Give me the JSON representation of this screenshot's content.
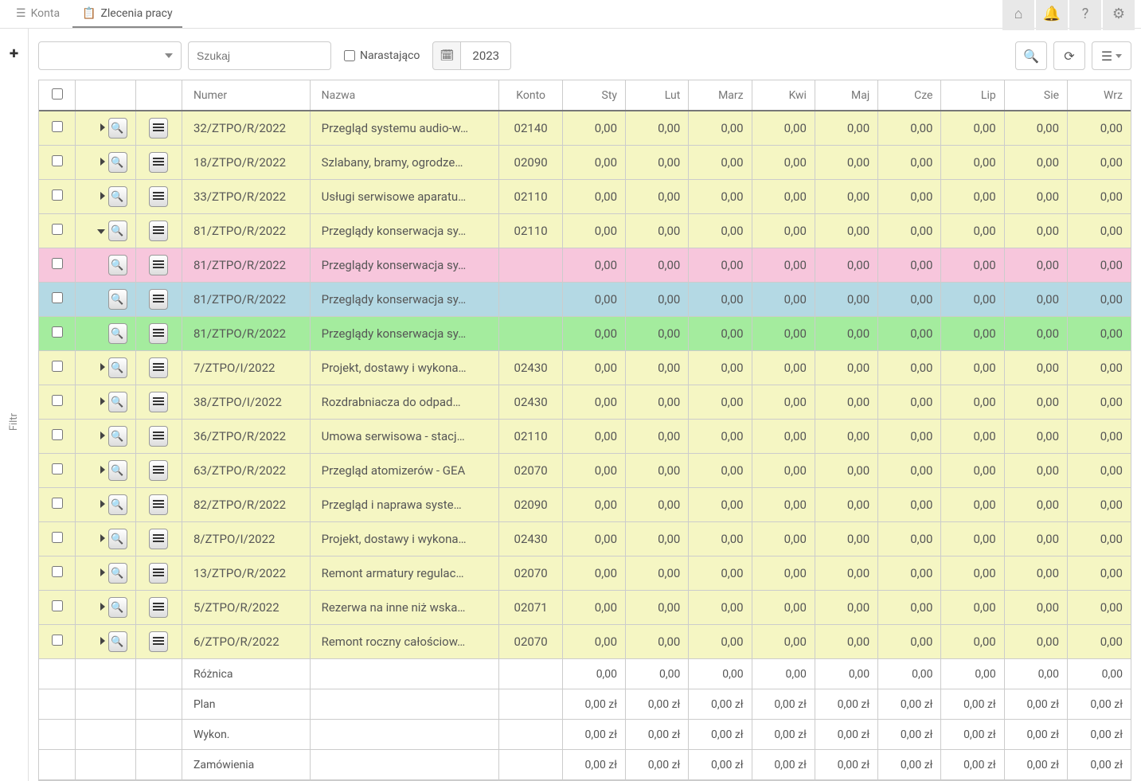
{
  "nav": {
    "tab1": "Konta",
    "tab2": "Zlecenia pracy"
  },
  "toolbar": {
    "searchPlaceholder": "Szukaj",
    "ascending": "Narastająco",
    "year": "2023"
  },
  "sidebar": {
    "filtr": "Filtr"
  },
  "headers": {
    "numer": "Numer",
    "nazwa": "Nazwa",
    "konto": "Konto",
    "sty": "Sty",
    "lut": "Lut",
    "marz": "Marz",
    "kwi": "Kwi",
    "maj": "Maj",
    "cze": "Cze",
    "lip": "Lip",
    "sie": "Sie",
    "wrz": "Wrz"
  },
  "rows": [
    {
      "rc": "row-yellow row-first",
      "ex": "r",
      "numer": "32/ZTPO/R/2022",
      "nazwa": "Przegląd systemu audio-w…",
      "konto": "02140",
      "vals": [
        "0,00",
        "0,00",
        "0,00",
        "0,00",
        "0,00",
        "0,00",
        "0,00",
        "0,00",
        "0,00"
      ]
    },
    {
      "rc": "row-yellow",
      "ex": "r",
      "numer": "18/ZTPO/R/2022",
      "nazwa": "Szlabany, bramy, ogrodze…",
      "konto": "02090",
      "vals": [
        "0,00",
        "0,00",
        "0,00",
        "0,00",
        "0,00",
        "0,00",
        "0,00",
        "0,00",
        "0,00"
      ]
    },
    {
      "rc": "row-yellow",
      "ex": "r",
      "numer": "33/ZTPO/R/2022",
      "nazwa": "Usługi serwisowe aparatu…",
      "konto": "02110",
      "vals": [
        "0,00",
        "0,00",
        "0,00",
        "0,00",
        "0,00",
        "0,00",
        "0,00",
        "0,00",
        "0,00"
      ]
    },
    {
      "rc": "row-yellow",
      "ex": "d",
      "numer": "81/ZTPO/R/2022",
      "nazwa": "Przeglądy konserwacja sy…",
      "konto": "02110",
      "vals": [
        "0,00",
        "0,00",
        "0,00",
        "0,00",
        "0,00",
        "0,00",
        "0,00",
        "0,00",
        "0,00"
      ]
    },
    {
      "rc": "row-pink",
      "ex": "",
      "numer": "81/ZTPO/R/2022",
      "nazwa": "Przeglądy konserwacja sy…",
      "konto": "",
      "vals": [
        "0,00",
        "0,00",
        "0,00",
        "0,00",
        "0,00",
        "0,00",
        "0,00",
        "0,00",
        "0,00"
      ]
    },
    {
      "rc": "row-blue",
      "ex": "",
      "numer": "81/ZTPO/R/2022",
      "nazwa": "Przeglądy konserwacja sy…",
      "konto": "",
      "vals": [
        "0,00",
        "0,00",
        "0,00",
        "0,00",
        "0,00",
        "0,00",
        "0,00",
        "0,00",
        "0,00"
      ]
    },
    {
      "rc": "row-green",
      "ex": "",
      "numer": "81/ZTPO/R/2022",
      "nazwa": "Przeglądy konserwacja sy…",
      "konto": "",
      "vals": [
        "0,00",
        "0,00",
        "0,00",
        "0,00",
        "0,00",
        "0,00",
        "0,00",
        "0,00",
        "0,00"
      ]
    },
    {
      "rc": "row-yellow",
      "ex": "r",
      "numer": "7/ZTPO/I/2022",
      "nazwa": "Projekt, dostawy i wykona…",
      "konto": "02430",
      "vals": [
        "0,00",
        "0,00",
        "0,00",
        "0,00",
        "0,00",
        "0,00",
        "0,00",
        "0,00",
        "0,00"
      ]
    },
    {
      "rc": "row-yellow",
      "ex": "r",
      "numer": "38/ZTPO/I/2022",
      "nazwa": "Rozdrabniacza do odpad…",
      "konto": "02430",
      "vals": [
        "0,00",
        "0,00",
        "0,00",
        "0,00",
        "0,00",
        "0,00",
        "0,00",
        "0,00",
        "0,00"
      ]
    },
    {
      "rc": "row-yellow",
      "ex": "r",
      "numer": "36/ZTPO/R/2022",
      "nazwa": "Umowa serwisowa - stacj…",
      "konto": "02110",
      "vals": [
        "0,00",
        "0,00",
        "0,00",
        "0,00",
        "0,00",
        "0,00",
        "0,00",
        "0,00",
        "0,00"
      ]
    },
    {
      "rc": "row-yellow",
      "ex": "r",
      "numer": "63/ZTPO/R/2022",
      "nazwa": "Przegląd atomizerów - GEA",
      "konto": "02070",
      "vals": [
        "0,00",
        "0,00",
        "0,00",
        "0,00",
        "0,00",
        "0,00",
        "0,00",
        "0,00",
        "0,00"
      ]
    },
    {
      "rc": "row-yellow",
      "ex": "r",
      "numer": "82/ZTPO/R/2022",
      "nazwa": "Przegląd i naprawa syste…",
      "konto": "02090",
      "vals": [
        "0,00",
        "0,00",
        "0,00",
        "0,00",
        "0,00",
        "0,00",
        "0,00",
        "0,00",
        "0,00"
      ]
    },
    {
      "rc": "row-yellow",
      "ex": "r",
      "numer": "8/ZTPO/I/2022",
      "nazwa": "Projekt, dostawy i wykona…",
      "konto": "02430",
      "vals": [
        "0,00",
        "0,00",
        "0,00",
        "0,00",
        "0,00",
        "0,00",
        "0,00",
        "0,00",
        "0,00"
      ]
    },
    {
      "rc": "row-yellow",
      "ex": "r",
      "numer": "13/ZTPO/R/2022",
      "nazwa": "Remont armatury regulac…",
      "konto": "02070",
      "vals": [
        "0,00",
        "0,00",
        "0,00",
        "0,00",
        "0,00",
        "0,00",
        "0,00",
        "0,00",
        "0,00"
      ]
    },
    {
      "rc": "row-yellow",
      "ex": "r",
      "numer": "5/ZTPO/R/2022",
      "nazwa": "Rezerwa na inne niż wska…",
      "konto": "02071",
      "vals": [
        "0,00",
        "0,00",
        "0,00",
        "0,00",
        "0,00",
        "0,00",
        "0,00",
        "0,00",
        "0,00"
      ]
    },
    {
      "rc": "row-yellow",
      "ex": "r",
      "numer": "6/ZTPO/R/2022",
      "nazwa": "Remont roczny całościow…",
      "konto": "02070",
      "vals": [
        "0,00",
        "0,00",
        "0,00",
        "0,00",
        "0,00",
        "0,00",
        "0,00",
        "0,00",
        "0,00"
      ]
    }
  ],
  "footer": [
    {
      "label": "Różnica",
      "unit": ""
    },
    {
      "label": "Plan",
      "unit": " zł"
    },
    {
      "label": "Wykon.",
      "unit": " zł"
    },
    {
      "label": "Zamówienia",
      "unit": " zł"
    }
  ],
  "footVal": "0,00"
}
